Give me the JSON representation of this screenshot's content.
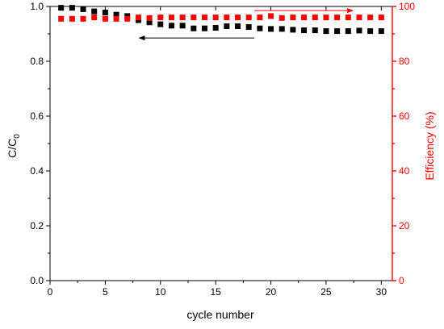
{
  "chart_data": {
    "type": "scatter",
    "xlabel": "cycle number",
    "ylabel_left": {
      "main": "C/C",
      "sub": "0"
    },
    "ylabel_right": "Efficiency (%)",
    "xlim": [
      0,
      31
    ],
    "ylim_left": [
      0,
      1.0
    ],
    "ylim_right": [
      0,
      100
    ],
    "x_ticks": [
      0,
      5,
      10,
      15,
      20,
      25,
      30
    ],
    "x_tick_labels": [
      "0",
      "5",
      "10",
      "15",
      "20",
      "25",
      "30"
    ],
    "y_left_ticks": [
      0.0,
      0.2,
      0.4,
      0.6,
      0.8,
      1.0
    ],
    "y_left_tick_labels": [
      "0.0",
      "0.2",
      "0.4",
      "0.6",
      "0.8",
      "1.0"
    ],
    "y_right_ticks": [
      0,
      20,
      40,
      60,
      80,
      100
    ],
    "y_right_tick_labels": [
      "0",
      "20",
      "40",
      "60",
      "80",
      "100"
    ],
    "grid": false,
    "colors": {
      "capacity": "#000000",
      "efficiency": "#ff0000",
      "axis_left": "#000000",
      "axis_right": "#ff0000"
    },
    "series": [
      {
        "axis": "left",
        "x": [
          1,
          2,
          3,
          4,
          5,
          6,
          7,
          8,
          9,
          10,
          11,
          12,
          13,
          14,
          15,
          16,
          17,
          18,
          19,
          20,
          21,
          22,
          23,
          24,
          25,
          26,
          27,
          28,
          29,
          30
        ],
        "values": [
          0.995,
          0.995,
          0.99,
          0.982,
          0.978,
          0.97,
          0.965,
          0.95,
          0.942,
          0.935,
          0.93,
          0.93,
          0.92,
          0.92,
          0.922,
          0.928,
          0.928,
          0.925,
          0.92,
          0.918,
          0.918,
          0.915,
          0.913,
          0.913,
          0.91,
          0.91,
          0.91,
          0.912,
          0.91,
          0.91
        ]
      },
      {
        "axis": "right",
        "x": [
          1,
          2,
          3,
          4,
          5,
          6,
          7,
          8,
          9,
          10,
          11,
          12,
          13,
          14,
          15,
          16,
          17,
          18,
          19,
          20,
          21,
          22,
          23,
          24,
          25,
          26,
          27,
          28,
          29,
          30
        ],
        "values": [
          95.5,
          95.5,
          95.5,
          96.0,
          95.5,
          95.5,
          95.5,
          96.0,
          95.8,
          96.0,
          96.0,
          96.0,
          96.0,
          96.0,
          96.0,
          96.0,
          96.0,
          96.0,
          96.0,
          96.5,
          95.8,
          96.0,
          96.0,
          96.0,
          96.0,
          96.0,
          96.0,
          96.0,
          96.0,
          96.0
        ]
      }
    ],
    "arrows": [
      {
        "axis": "left",
        "x_from": 18.5,
        "x_to": 8.0,
        "y": 0.885,
        "color": "#000000"
      },
      {
        "axis": "right",
        "x_from": 18.5,
        "x_to": 27.5,
        "y": 98.5,
        "color": "#ff0000"
      }
    ]
  }
}
